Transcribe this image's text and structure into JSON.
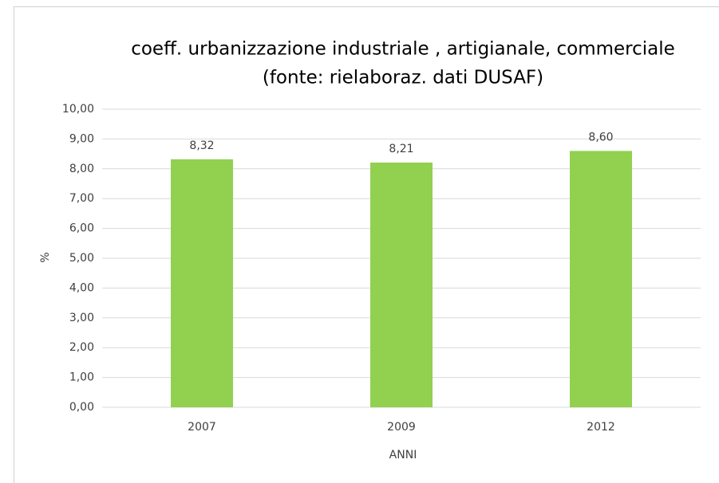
{
  "chart_data": {
    "type": "bar",
    "title": [
      "coeff. urbanizzazione industriale , artigianale, commerciale",
      "(fonte: rielaboraz. dati DUSAF)"
    ],
    "x_label": "ANNI",
    "y_label": "%",
    "categories": [
      "2007",
      "2009",
      "2012"
    ],
    "values": [
      8.32,
      8.21,
      8.6
    ],
    "value_labels": [
      "8,32",
      "8,21",
      "8,60"
    ],
    "color": "#92d050",
    "ylim": [
      0,
      10
    ],
    "yticks": [
      {
        "value": 0,
        "label": "0,00"
      },
      {
        "value": 1,
        "label": "1,00"
      },
      {
        "value": 2,
        "label": "2,00"
      },
      {
        "value": 3,
        "label": "3,00"
      },
      {
        "value": 4,
        "label": "4,00"
      },
      {
        "value": 5,
        "label": "5,00"
      },
      {
        "value": 6,
        "label": "6,00"
      },
      {
        "value": 7,
        "label": "7,00"
      },
      {
        "value": 8,
        "label": "8,00"
      },
      {
        "value": 9,
        "label": "9,00"
      },
      {
        "value": 10,
        "label": "10,00"
      }
    ],
    "grid": true
  }
}
